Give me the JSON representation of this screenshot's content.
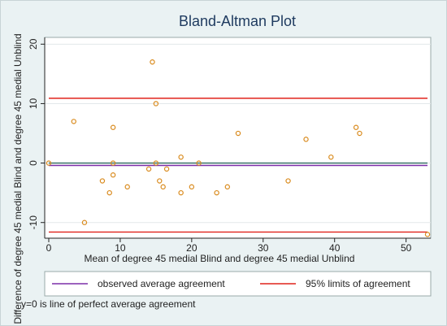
{
  "chart_data": {
    "type": "scatter",
    "title": "Bland-Altman Plot",
    "xlabel": "Mean of degree 45 medial Blind and degree 45 medial Unblind",
    "ylabel": "Difference of degree 45 medial Blind and degree 45 medial Unblind",
    "xlim": [
      0,
      53
    ],
    "ylim": [
      -12.5,
      21
    ],
    "x_ticks": [
      0,
      10,
      20,
      30,
      40,
      50
    ],
    "y_ticks": [
      -10,
      0,
      10,
      20
    ],
    "x_tick_labels": [
      "0",
      "10",
      "20",
      "30",
      "40",
      "50"
    ],
    "y_tick_labels": [
      "-10",
      "0",
      "10",
      "20"
    ],
    "grid": "y",
    "reference_lines": [
      {
        "name": "y=0",
        "y": 0,
        "color": "#2e6b5e"
      },
      {
        "name": "observed average agreement",
        "y": -0.4,
        "color": "#7b2fa8"
      },
      {
        "name": "95% limits of agreement",
        "y": 10.9,
        "color": "#e0231c"
      },
      {
        "name": "95% limits of agreement",
        "y": -11.6,
        "color": "#e0231c"
      }
    ],
    "series": [
      {
        "marker_color": "#d98a1c",
        "points": [
          [
            0,
            0
          ],
          [
            3.5,
            7
          ],
          [
            5,
            -10
          ],
          [
            7.5,
            -3
          ],
          [
            8.5,
            -5
          ],
          [
            9,
            -2
          ],
          [
            9,
            0
          ],
          [
            9,
            6
          ],
          [
            11,
            -4
          ],
          [
            14,
            -1
          ],
          [
            14.5,
            17
          ],
          [
            15,
            10
          ],
          [
            15,
            0
          ],
          [
            15.5,
            -3
          ],
          [
            16,
            -4
          ],
          [
            16.5,
            -1
          ],
          [
            18.5,
            1
          ],
          [
            18.5,
            -5
          ],
          [
            20,
            -4
          ],
          [
            21,
            0
          ],
          [
            23.5,
            -5
          ],
          [
            25,
            -4
          ],
          [
            26.5,
            5
          ],
          [
            33.5,
            -3
          ],
          [
            36,
            4
          ],
          [
            39.5,
            1
          ],
          [
            43,
            6
          ],
          [
            43.5,
            5
          ],
          [
            53,
            -12
          ]
        ]
      }
    ],
    "legend": {
      "placement": "bottom",
      "entries": [
        {
          "label": "observed average agreement",
          "color": "#7b2fa8"
        },
        {
          "label": "95% limits of agreement",
          "color": "#e0231c"
        }
      ]
    },
    "note": "y=0 is line of perfect average agreement"
  }
}
